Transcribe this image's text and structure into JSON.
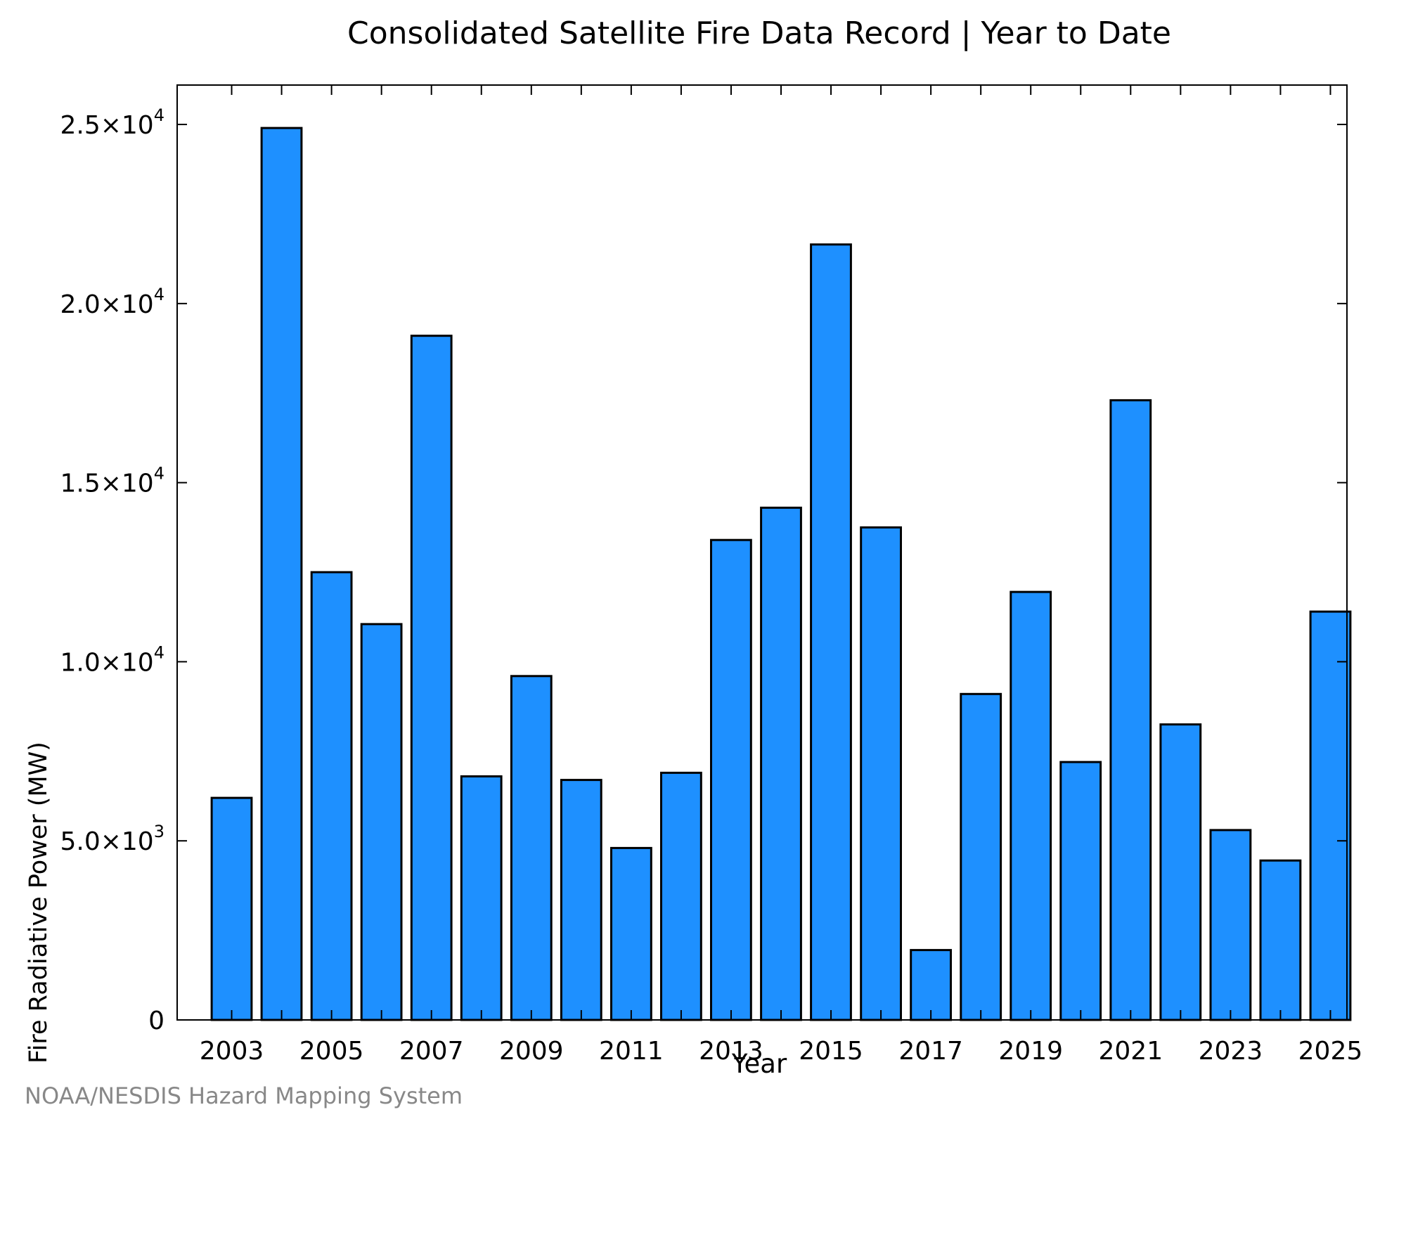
{
  "chart_data": {
    "type": "bar",
    "title": "Consolidated Satellite Fire Data Record | Year to Date",
    "xlabel": "Year",
    "ylabel": "Fire Radiative Power (MW)",
    "categories": [
      "2003",
      "2004",
      "2005",
      "2006",
      "2007",
      "2008",
      "2009",
      "2010",
      "2011",
      "2012",
      "2013",
      "2014",
      "2015",
      "2016",
      "2017",
      "2018",
      "2019",
      "2020",
      "2021",
      "2022",
      "2023",
      "2024",
      "2025"
    ],
    "values": [
      6200,
      24900,
      12500,
      11050,
      19100,
      6800,
      9600,
      6700,
      4800,
      6900,
      13400,
      14300,
      21650,
      13750,
      1950,
      9100,
      11950,
      7200,
      17300,
      8250,
      5300,
      4450,
      11400
    ],
    "xtick_labels": [
      "2003",
      "2005",
      "2007",
      "2009",
      "2011",
      "2013",
      "2015",
      "2017",
      "2019",
      "2021",
      "2023",
      "2025"
    ],
    "yticks": [
      {
        "value": 0,
        "mantissa": "0",
        "exp": ""
      },
      {
        "value": 5000,
        "mantissa": "5.0×10",
        "exp": "3"
      },
      {
        "value": 10000,
        "mantissa": "1.0×10",
        "exp": "4"
      },
      {
        "value": 15000,
        "mantissa": "1.5×10",
        "exp": "4"
      },
      {
        "value": 20000,
        "mantissa": "2.0×10",
        "exp": "4"
      },
      {
        "value": 25000,
        "mantissa": "2.5×10",
        "exp": "4"
      }
    ],
    "ylim": [
      0,
      26100
    ],
    "grid": false,
    "bar_color": "#1e90ff",
    "bar_edge_color": "#000000"
  },
  "footer": {
    "credit": "NOAA/NESDIS Hazard Mapping System"
  }
}
